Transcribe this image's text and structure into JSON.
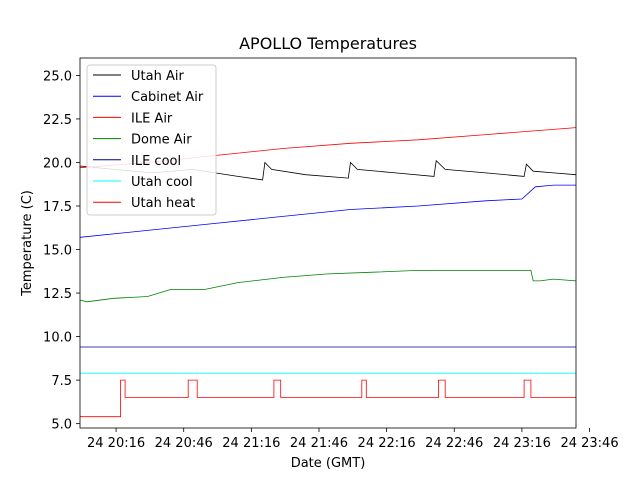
{
  "chart_data": {
    "type": "line",
    "title": "APOLLO Temperatures",
    "xlabel": "Date (GMT)",
    "ylabel": "Temperature (C)",
    "xlim_minutes": [
      1200,
      1420
    ],
    "ylim": [
      4.75,
      26.0
    ],
    "x_ticks": [
      {
        "minute": 1216,
        "label": "24 20:16"
      },
      {
        "minute": 1246,
        "label": "24 20:46"
      },
      {
        "minute": 1276,
        "label": "24 21:16"
      },
      {
        "minute": 1306,
        "label": "24 21:46"
      },
      {
        "minute": 1336,
        "label": "24 22:16"
      },
      {
        "minute": 1366,
        "label": "24 22:46"
      },
      {
        "minute": 1396,
        "label": "24 23:16"
      },
      {
        "minute": 1426,
        "label": "24 23:46"
      }
    ],
    "y_ticks": [
      {
        "value": 5.0,
        "label": "5.0"
      },
      {
        "value": 7.5,
        "label": "7.5"
      },
      {
        "value": 10.0,
        "label": "10.0"
      },
      {
        "value": 12.5,
        "label": "12.5"
      },
      {
        "value": 15.0,
        "label": "15.0"
      },
      {
        "value": 17.5,
        "label": "17.5"
      },
      {
        "value": 20.0,
        "label": "20.0"
      },
      {
        "value": 22.5,
        "label": "22.5"
      },
      {
        "value": 25.0,
        "label": "25.0"
      }
    ],
    "legend_position": "top-left",
    "series": [
      {
        "name": "Utah Air",
        "color": "#000000",
        "x": [
          1200,
          1215,
          1232,
          1250,
          1270,
          1281,
          1282,
          1285,
          1300,
          1319,
          1320,
          1323,
          1340,
          1357,
          1358,
          1362,
          1380,
          1397,
          1398,
          1401,
          1410,
          1420
        ],
        "y": [
          19.8,
          19.6,
          19.4,
          19.6,
          19.2,
          19.0,
          20.0,
          19.6,
          19.3,
          19.1,
          20.0,
          19.6,
          19.4,
          19.2,
          20.1,
          19.6,
          19.4,
          19.2,
          19.9,
          19.5,
          19.4,
          19.3
        ]
      },
      {
        "name": "Cabinet Air",
        "color": "#0000ff",
        "x": [
          1200,
          1230,
          1260,
          1290,
          1320,
          1350,
          1380,
          1396,
          1402,
          1410,
          1420
        ],
        "y": [
          15.7,
          16.1,
          16.5,
          16.9,
          17.3,
          17.5,
          17.8,
          17.9,
          18.6,
          18.7,
          18.7
        ]
      },
      {
        "name": "ILE Air",
        "color": "#ff0000",
        "x": [
          1200,
          1230,
          1260,
          1290,
          1320,
          1350,
          1380,
          1410,
          1420
        ],
        "y": [
          19.7,
          20.0,
          20.4,
          20.8,
          21.1,
          21.3,
          21.6,
          21.9,
          22.0
        ]
      },
      {
        "name": "Dome Air",
        "color": "#008000",
        "x": [
          1200,
          1203,
          1215,
          1230,
          1240,
          1255,
          1270,
          1290,
          1310,
          1330,
          1350,
          1370,
          1390,
          1400,
          1401,
          1404,
          1410,
          1420
        ],
        "y": [
          12.1,
          12.0,
          12.2,
          12.3,
          12.7,
          12.7,
          13.1,
          13.4,
          13.6,
          13.7,
          13.8,
          13.8,
          13.8,
          13.8,
          13.2,
          13.2,
          13.3,
          13.2
        ]
      },
      {
        "name": "ILE cool",
        "color": "#00008b",
        "x": [
          1200,
          1420
        ],
        "y": [
          9.4,
          9.4
        ]
      },
      {
        "name": "Utah cool",
        "color": "#00ffff",
        "x": [
          1200,
          1420
        ],
        "y": [
          7.9,
          7.9
        ]
      },
      {
        "name": "Utah heat",
        "color": "#ff0000",
        "x": [
          1200,
          1218,
          1218,
          1220,
          1220,
          1248,
          1248,
          1252,
          1252,
          1286,
          1286,
          1289,
          1289,
          1325,
          1325,
          1327,
          1327,
          1359,
          1359,
          1362,
          1362,
          1397,
          1397,
          1400,
          1400,
          1420
        ],
        "y": [
          5.4,
          5.4,
          7.5,
          7.5,
          6.5,
          6.5,
          7.5,
          7.5,
          6.5,
          6.5,
          7.5,
          7.5,
          6.5,
          6.5,
          7.5,
          7.5,
          6.5,
          6.5,
          7.5,
          7.5,
          6.5,
          6.5,
          7.5,
          7.5,
          6.5,
          6.5
        ]
      }
    ]
  }
}
